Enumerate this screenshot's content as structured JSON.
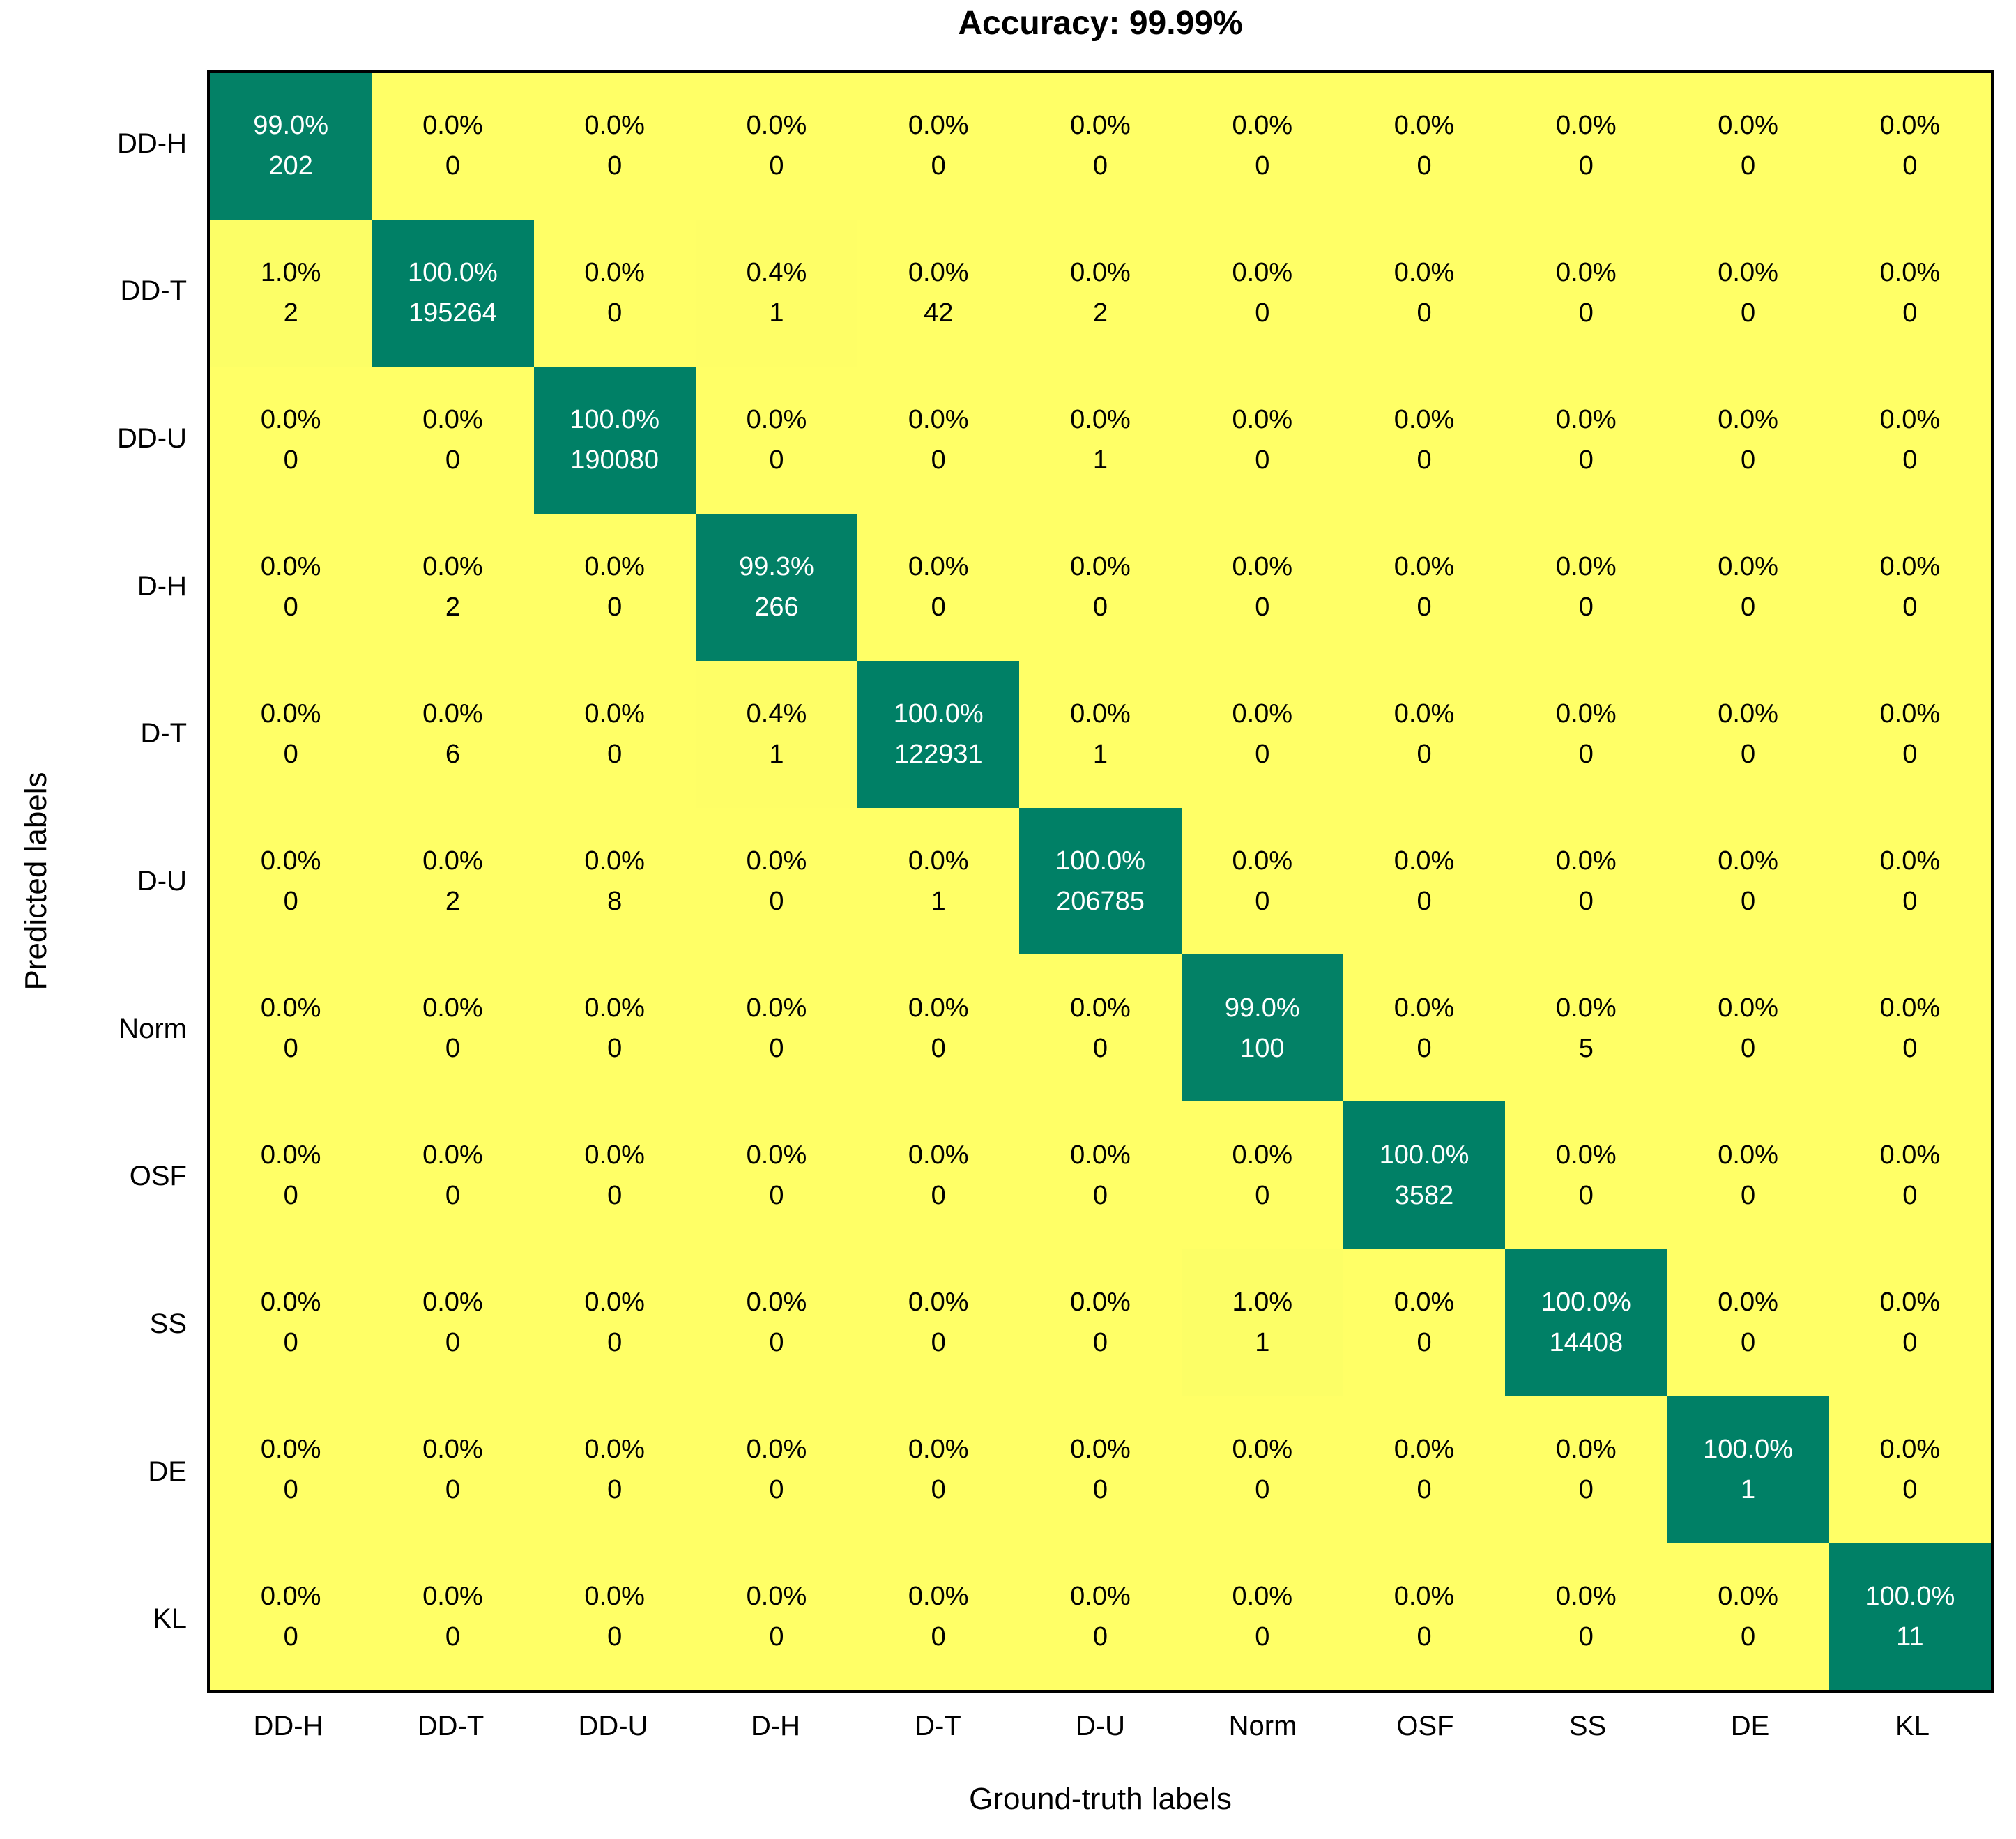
{
  "chart_data": {
    "type": "heatmap",
    "title": "Accuracy: 99.99%",
    "xlabel": "Ground-truth labels",
    "ylabel": "Predicted labels",
    "labels": [
      "DD-H",
      "DD-T",
      "DD-U",
      "D-H",
      "D-T",
      "D-U",
      "Norm",
      "OSF",
      "SS",
      "DE",
      "KL"
    ],
    "cell_value_format": "[percent, count]",
    "matrix": [
      [
        [
          99.0,
          202
        ],
        [
          0.0,
          0
        ],
        [
          0.0,
          0
        ],
        [
          0.0,
          0
        ],
        [
          0.0,
          0
        ],
        [
          0.0,
          0
        ],
        [
          0.0,
          0
        ],
        [
          0.0,
          0
        ],
        [
          0.0,
          0
        ],
        [
          0.0,
          0
        ],
        [
          0.0,
          0
        ]
      ],
      [
        [
          1.0,
          2
        ],
        [
          100.0,
          195264
        ],
        [
          0.0,
          0
        ],
        [
          0.4,
          1
        ],
        [
          0.0,
          42
        ],
        [
          0.0,
          2
        ],
        [
          0.0,
          0
        ],
        [
          0.0,
          0
        ],
        [
          0.0,
          0
        ],
        [
          0.0,
          0
        ],
        [
          0.0,
          0
        ]
      ],
      [
        [
          0.0,
          0
        ],
        [
          0.0,
          0
        ],
        [
          100.0,
          190080
        ],
        [
          0.0,
          0
        ],
        [
          0.0,
          0
        ],
        [
          0.0,
          1
        ],
        [
          0.0,
          0
        ],
        [
          0.0,
          0
        ],
        [
          0.0,
          0
        ],
        [
          0.0,
          0
        ],
        [
          0.0,
          0
        ]
      ],
      [
        [
          0.0,
          0
        ],
        [
          0.0,
          2
        ],
        [
          0.0,
          0
        ],
        [
          99.3,
          266
        ],
        [
          0.0,
          0
        ],
        [
          0.0,
          0
        ],
        [
          0.0,
          0
        ],
        [
          0.0,
          0
        ],
        [
          0.0,
          0
        ],
        [
          0.0,
          0
        ],
        [
          0.0,
          0
        ]
      ],
      [
        [
          0.0,
          0
        ],
        [
          0.0,
          6
        ],
        [
          0.0,
          0
        ],
        [
          0.4,
          1
        ],
        [
          100.0,
          122931
        ],
        [
          0.0,
          1
        ],
        [
          0.0,
          0
        ],
        [
          0.0,
          0
        ],
        [
          0.0,
          0
        ],
        [
          0.0,
          0
        ],
        [
          0.0,
          0
        ]
      ],
      [
        [
          0.0,
          0
        ],
        [
          0.0,
          2
        ],
        [
          0.0,
          8
        ],
        [
          0.0,
          0
        ],
        [
          0.0,
          1
        ],
        [
          100.0,
          206785
        ],
        [
          0.0,
          0
        ],
        [
          0.0,
          0
        ],
        [
          0.0,
          0
        ],
        [
          0.0,
          0
        ],
        [
          0.0,
          0
        ]
      ],
      [
        [
          0.0,
          0
        ],
        [
          0.0,
          0
        ],
        [
          0.0,
          0
        ],
        [
          0.0,
          0
        ],
        [
          0.0,
          0
        ],
        [
          0.0,
          0
        ],
        [
          99.0,
          100
        ],
        [
          0.0,
          0
        ],
        [
          0.0,
          5
        ],
        [
          0.0,
          0
        ],
        [
          0.0,
          0
        ]
      ],
      [
        [
          0.0,
          0
        ],
        [
          0.0,
          0
        ],
        [
          0.0,
          0
        ],
        [
          0.0,
          0
        ],
        [
          0.0,
          0
        ],
        [
          0.0,
          0
        ],
        [
          0.0,
          0
        ],
        [
          100.0,
          3582
        ],
        [
          0.0,
          0
        ],
        [
          0.0,
          0
        ],
        [
          0.0,
          0
        ]
      ],
      [
        [
          0.0,
          0
        ],
        [
          0.0,
          0
        ],
        [
          0.0,
          0
        ],
        [
          0.0,
          0
        ],
        [
          0.0,
          0
        ],
        [
          0.0,
          0
        ],
        [
          1.0,
          1
        ],
        [
          0.0,
          0
        ],
        [
          100.0,
          14408
        ],
        [
          0.0,
          0
        ],
        [
          0.0,
          0
        ]
      ],
      [
        [
          0.0,
          0
        ],
        [
          0.0,
          0
        ],
        [
          0.0,
          0
        ],
        [
          0.0,
          0
        ],
        [
          0.0,
          0
        ],
        [
          0.0,
          0
        ],
        [
          0.0,
          0
        ],
        [
          0.0,
          0
        ],
        [
          0.0,
          0
        ],
        [
          100.0,
          1
        ],
        [
          0.0,
          0
        ]
      ],
      [
        [
          0.0,
          0
        ],
        [
          0.0,
          0
        ],
        [
          0.0,
          0
        ],
        [
          0.0,
          0
        ],
        [
          0.0,
          0
        ],
        [
          0.0,
          0
        ],
        [
          0.0,
          0
        ],
        [
          0.0,
          0
        ],
        [
          0.0,
          0
        ],
        [
          0.0,
          0
        ],
        [
          100.0,
          11
        ]
      ]
    ],
    "colormap": {
      "name": "summer_r",
      "low_pct_color": "#ffff66",
      "high_pct_color": "#008066"
    },
    "text_colors": {
      "on_yellow": "#000000",
      "on_green": "#ffffff"
    },
    "frame_color": "#000000",
    "background": "#ffffff",
    "grid": false,
    "legend": "none"
  }
}
